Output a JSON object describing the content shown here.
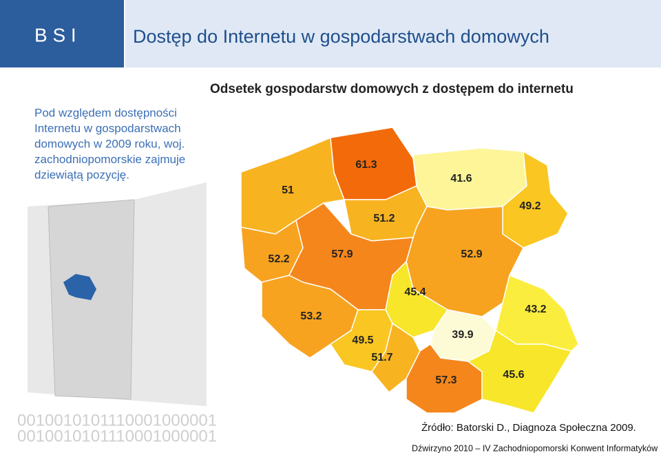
{
  "header": {
    "logo": "B S I",
    "title": "Dostęp do Internetu w gospodarstwach domowych"
  },
  "sidebar": {
    "lines": [
      "Pod względem dostępności",
      "Internetu w gospodarstwach",
      "domowych w 2009 roku, woj.",
      "zachodniopomorskie zajmuje",
      "dziewiątą pozycję."
    ]
  },
  "map": {
    "title": "Odsetek gospodarstw domowych z dostępem do internetu",
    "regions": [
      {
        "value": 51,
        "color": "#f8b321"
      },
      {
        "value": 61.3,
        "color": "#f26a0a"
      },
      {
        "value": 41.6,
        "color": "#fdf598"
      },
      {
        "value": 49.2,
        "color": "#f9c622"
      },
      {
        "value": 51.2,
        "color": "#f8b321"
      },
      {
        "value": 52.9,
        "color": "#f7a320"
      },
      {
        "value": 52.2,
        "color": "#f7a320"
      },
      {
        "value": 57.9,
        "color": "#f5861c"
      },
      {
        "value": 45.4,
        "color": "#f7e62a"
      },
      {
        "value": 43.2,
        "color": "#fbed3e"
      },
      {
        "value": 53.2,
        "color": "#f7a320"
      },
      {
        "value": 49.5,
        "color": "#f9c622"
      },
      {
        "value": 51.7,
        "color": "#f8b321"
      },
      {
        "value": 39.9,
        "color": "#fdfbd6"
      },
      {
        "value": 57.3,
        "color": "#f5861c"
      },
      {
        "value": 45.6,
        "color": "#f7e62a"
      }
    ]
  },
  "decor": {
    "binary": [
      "0010010101110001000001",
      "0010010101110001000001"
    ]
  },
  "source": "Źródło: Batorski D., Diagnoza Społeczna 2009.",
  "footer": "Dźwirzyno 2010 – IV Zachodniopomorski Konwent Informatyków"
}
